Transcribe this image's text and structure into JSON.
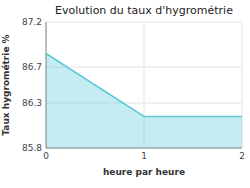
{
  "chart_data": {
    "type": "area",
    "title": "Evolution du taux d'hygrométrie",
    "xlabel": "heure par heure",
    "ylabel": "Taux hygrométrie %",
    "x": [
      0,
      1,
      2
    ],
    "values": [
      86.85,
      86.15,
      86.15
    ],
    "color": "#5bc8dc",
    "xlim": [
      0,
      2
    ],
    "ylim": [
      85.8,
      87.2
    ],
    "xticks": [
      0,
      1,
      2
    ],
    "yticks": [
      85.8,
      86.3,
      86.7,
      87.2
    ],
    "grid": true
  }
}
